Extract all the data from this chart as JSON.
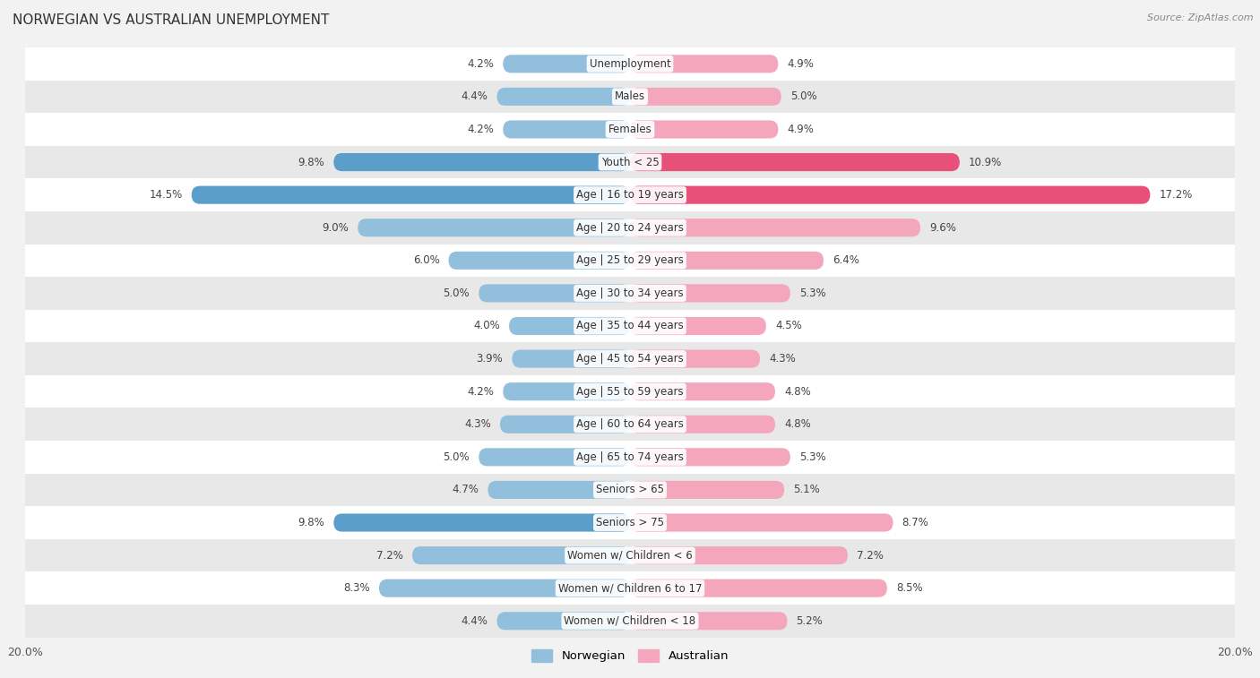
{
  "title": "NORWEGIAN VS AUSTRALIAN UNEMPLOYMENT",
  "source": "Source: ZipAtlas.com",
  "categories": [
    "Unemployment",
    "Males",
    "Females",
    "Youth < 25",
    "Age | 16 to 19 years",
    "Age | 20 to 24 years",
    "Age | 25 to 29 years",
    "Age | 30 to 34 years",
    "Age | 35 to 44 years",
    "Age | 45 to 54 years",
    "Age | 55 to 59 years",
    "Age | 60 to 64 years",
    "Age | 65 to 74 years",
    "Seniors > 65",
    "Seniors > 75",
    "Women w/ Children < 6",
    "Women w/ Children 6 to 17",
    "Women w/ Children < 18"
  ],
  "norwegian_values": [
    4.2,
    4.4,
    4.2,
    9.8,
    14.5,
    9.0,
    6.0,
    5.0,
    4.0,
    3.9,
    4.2,
    4.3,
    5.0,
    4.7,
    9.8,
    7.2,
    8.3,
    4.4
  ],
  "australian_values": [
    4.9,
    5.0,
    4.9,
    10.9,
    17.2,
    9.6,
    6.4,
    5.3,
    4.5,
    4.3,
    4.8,
    4.8,
    5.3,
    5.1,
    8.7,
    7.2,
    8.5,
    5.2
  ],
  "norwegian_color_normal": "#92c0dc",
  "norwegian_color_high": "#5b9ec9",
  "australian_color_normal": "#f4a7bc",
  "australian_color_high": "#e8507a",
  "background_color": "#f2f2f2",
  "row_bg_colors": [
    "#ffffff",
    "#e8e8e8"
  ],
  "max_value": 20.0,
  "bar_height": 0.55,
  "label_fontsize": 8.5,
  "title_fontsize": 11,
  "source_fontsize": 8,
  "highlight_threshold_nor": 9.5,
  "highlight_threshold_aus": 10.5
}
